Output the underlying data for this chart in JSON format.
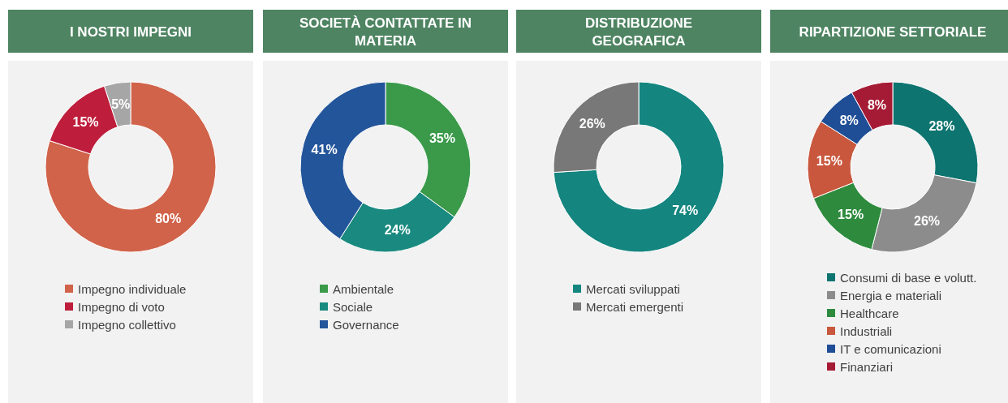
{
  "chart_data": [
    {
      "type": "donut",
      "title": "I NOSTRI IMPEGNI",
      "categories": [
        "Impegno individuale",
        "Impegno di voto",
        "Impegno collettivo"
      ],
      "values": [
        80,
        15,
        5
      ],
      "colors": [
        "#d0634a",
        "#be1e3c",
        "#a6a6a6"
      ],
      "value_labels": [
        "80%",
        "15%",
        "5%"
      ],
      "legend": "bottom"
    },
    {
      "type": "donut",
      "title": "SOCIETÀ CONTATTATE IN MATERIA",
      "categories": [
        "Ambientale",
        "Sociale",
        "Governance"
      ],
      "values": [
        35,
        24,
        41
      ],
      "colors": [
        "#3a9a4a",
        "#1a8a80",
        "#23559b"
      ],
      "value_labels": [
        "35%",
        "24%",
        "41%"
      ],
      "legend": "bottom"
    },
    {
      "type": "donut",
      "title": "DISTRIBUZIONE GEOGRAFICA",
      "categories": [
        "Mercati sviluppati",
        "Mercati emergenti"
      ],
      "values": [
        74,
        26
      ],
      "colors": [
        "#14857f",
        "#787878"
      ],
      "value_labels": [
        "74%",
        "26%"
      ],
      "legend": "bottom"
    },
    {
      "type": "donut",
      "title": "RIPARTIZIONE SETTORIALE",
      "categories": [
        "Consumi di base e volutt.",
        "Energia e materiali",
        "Healthcare",
        "Industriali",
        "IT e comunicazioni",
        "Finanziari"
      ],
      "values": [
        28,
        26,
        15,
        15,
        8,
        8
      ],
      "colors": [
        "#0e7470",
        "#8c8c8c",
        "#2e8b3e",
        "#c9573d",
        "#1f4e96",
        "#a51b35"
      ],
      "value_labels": [
        "28%",
        "26%",
        "15%",
        "15%",
        "8%",
        "8%"
      ],
      "legend": "bottom"
    }
  ]
}
